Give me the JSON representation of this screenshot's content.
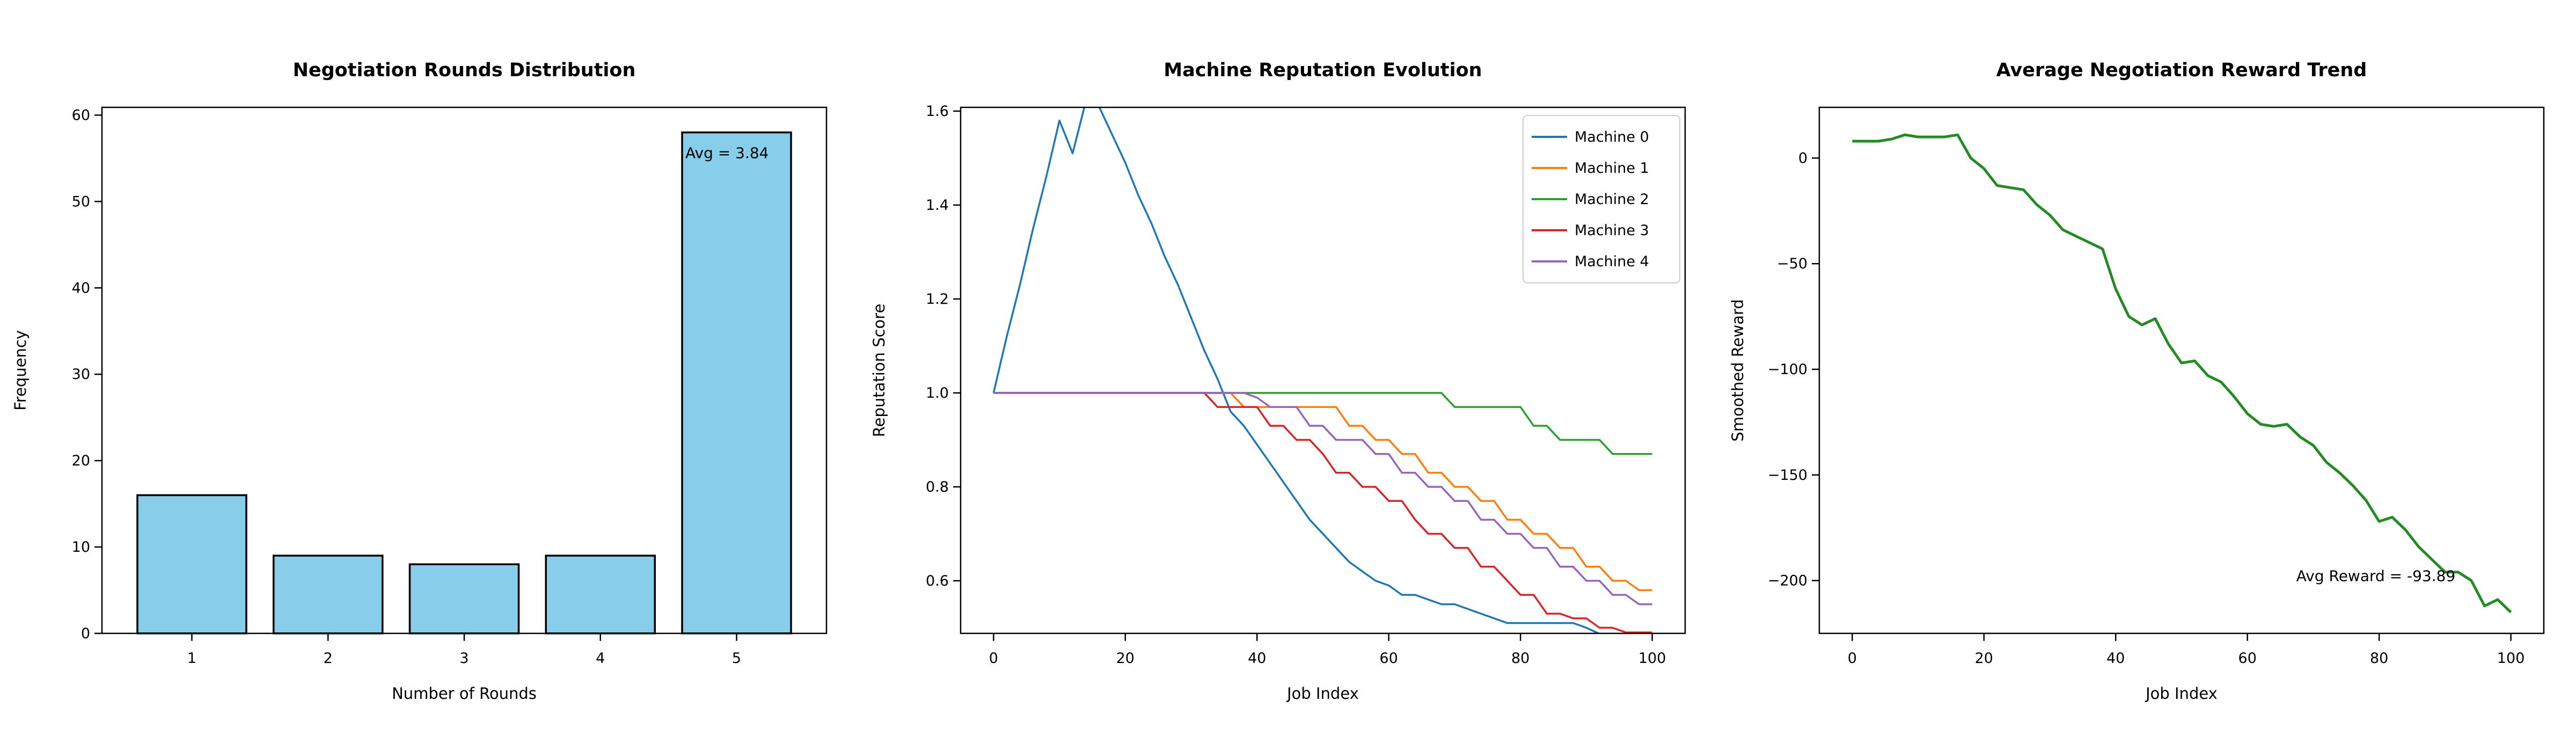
{
  "figure": {
    "background": "#ffffff"
  },
  "chart_data": [
    {
      "id": "rounds-distribution",
      "type": "bar",
      "title": "Negotiation Rounds Distribution",
      "xlabel": "Number of Rounds",
      "ylabel": "Frequency",
      "categories": [
        1,
        2,
        3,
        4,
        5
      ],
      "values": [
        16,
        9,
        8,
        9,
        58
      ],
      "bar_color": "#87CEEB",
      "bar_edge_color": "#000000",
      "bar_width": 0.8,
      "xlim": [
        0.34,
        5.66
      ],
      "ylim": [
        0,
        60.9
      ],
      "xticks": [
        1,
        2,
        3,
        4,
        5
      ],
      "xticklabels": [
        "1",
        "2",
        "3",
        "4",
        "5"
      ],
      "yticks": [
        0,
        10,
        20,
        30,
        40,
        50,
        60
      ],
      "yticklabels": [
        "0",
        "10",
        "20",
        "30",
        "40",
        "50",
        "60"
      ],
      "grid": false,
      "annotation": {
        "text": "Avg = 3.84",
        "x": 4.93,
        "y": 55.6
      }
    },
    {
      "id": "reputation-evolution",
      "type": "line",
      "title": "Machine Reputation Evolution",
      "xlabel": "Job Index",
      "ylabel": "Reputation Score",
      "x": [
        0,
        2,
        4,
        6,
        8,
        10,
        12,
        14,
        16,
        18,
        20,
        22,
        24,
        26,
        28,
        30,
        32,
        34,
        36,
        38,
        40,
        42,
        44,
        46,
        48,
        50,
        52,
        54,
        56,
        58,
        60,
        62,
        64,
        66,
        68,
        70,
        72,
        74,
        76,
        78,
        80,
        82,
        84,
        86,
        88,
        90,
        92,
        94,
        96,
        98,
        100
      ],
      "series": [
        {
          "name": "Machine 0",
          "color": "#1f77b4",
          "values": [
            1.0,
            1.12,
            1.23,
            1.35,
            1.46,
            1.58,
            1.51,
            1.62,
            1.61,
            1.55,
            1.49,
            1.42,
            1.36,
            1.29,
            1.23,
            1.16,
            1.09,
            1.03,
            0.96,
            0.93,
            0.89,
            0.85,
            0.81,
            0.77,
            0.73,
            0.7,
            0.67,
            0.64,
            0.62,
            0.6,
            0.59,
            0.57,
            0.57,
            0.56,
            0.55,
            0.55,
            0.54,
            0.53,
            0.52,
            0.51,
            0.51,
            0.51,
            0.51,
            0.51,
            0.51,
            0.5,
            0.487,
            0.487,
            0.487,
            0.487,
            0.487
          ]
        },
        {
          "name": "Machine 1",
          "color": "#ff7f0e",
          "values": [
            1.0,
            1.0,
            1.0,
            1.0,
            1.0,
            1.0,
            1.0,
            1.0,
            1.0,
            1.0,
            1.0,
            1.0,
            1.0,
            1.0,
            1.0,
            1.0,
            1.0,
            1.0,
            1.0,
            0.97,
            0.97,
            0.97,
            0.97,
            0.97,
            0.97,
            0.97,
            0.97,
            0.93,
            0.93,
            0.9,
            0.9,
            0.87,
            0.87,
            0.83,
            0.83,
            0.8,
            0.8,
            0.77,
            0.77,
            0.73,
            0.73,
            0.7,
            0.7,
            0.67,
            0.67,
            0.63,
            0.63,
            0.6,
            0.6,
            0.58,
            0.58
          ]
        },
        {
          "name": "Machine 2",
          "color": "#2ca02c",
          "values": [
            1.0,
            1.0,
            1.0,
            1.0,
            1.0,
            1.0,
            1.0,
            1.0,
            1.0,
            1.0,
            1.0,
            1.0,
            1.0,
            1.0,
            1.0,
            1.0,
            1.0,
            1.0,
            1.0,
            1.0,
            1.0,
            1.0,
            1.0,
            1.0,
            1.0,
            1.0,
            1.0,
            1.0,
            1.0,
            1.0,
            1.0,
            1.0,
            1.0,
            1.0,
            1.0,
            0.97,
            0.97,
            0.97,
            0.97,
            0.97,
            0.97,
            0.93,
            0.93,
            0.9,
            0.9,
            0.9,
            0.9,
            0.87,
            0.87,
            0.87,
            0.87
          ]
        },
        {
          "name": "Machine 3",
          "color": "#d62728",
          "values": [
            1.0,
            1.0,
            1.0,
            1.0,
            1.0,
            1.0,
            1.0,
            1.0,
            1.0,
            1.0,
            1.0,
            1.0,
            1.0,
            1.0,
            1.0,
            1.0,
            1.0,
            0.97,
            0.97,
            0.97,
            0.97,
            0.93,
            0.93,
            0.9,
            0.9,
            0.87,
            0.83,
            0.83,
            0.8,
            0.8,
            0.77,
            0.77,
            0.73,
            0.7,
            0.7,
            0.67,
            0.67,
            0.63,
            0.63,
            0.6,
            0.57,
            0.57,
            0.53,
            0.53,
            0.52,
            0.52,
            0.5,
            0.5,
            0.49,
            0.49,
            0.49
          ]
        },
        {
          "name": "Machine 4",
          "color": "#9467bd",
          "values": [
            1.0,
            1.0,
            1.0,
            1.0,
            1.0,
            1.0,
            1.0,
            1.0,
            1.0,
            1.0,
            1.0,
            1.0,
            1.0,
            1.0,
            1.0,
            1.0,
            1.0,
            1.0,
            1.0,
            1.0,
            0.99,
            0.97,
            0.97,
            0.97,
            0.93,
            0.93,
            0.9,
            0.9,
            0.9,
            0.87,
            0.87,
            0.83,
            0.83,
            0.8,
            0.8,
            0.77,
            0.77,
            0.73,
            0.73,
            0.7,
            0.7,
            0.67,
            0.67,
            0.63,
            0.63,
            0.6,
            0.6,
            0.57,
            0.57,
            0.55,
            0.55
          ]
        }
      ],
      "xlim": [
        -5,
        105
      ],
      "ylim": [
        0.488,
        1.608
      ],
      "xticks": [
        0,
        20,
        40,
        60,
        80,
        100
      ],
      "xticklabels": [
        "0",
        "20",
        "40",
        "60",
        "80",
        "100"
      ],
      "yticks": [
        0.6,
        0.8,
        1.0,
        1.2,
        1.4,
        1.6
      ],
      "yticklabels": [
        "0.6",
        "0.8",
        "1.0",
        "1.2",
        "1.4",
        "1.6"
      ],
      "grid": false,
      "line_width": 3.5,
      "legend": {
        "position": "upper right",
        "entries": [
          "Machine 0",
          "Machine 1",
          "Machine 2",
          "Machine 3",
          "Machine 4"
        ]
      }
    },
    {
      "id": "reward-trend",
      "type": "line",
      "title": "Average Negotiation Reward Trend",
      "xlabel": "Job Index",
      "ylabel": "Smoothed Reward",
      "x": [
        0,
        2,
        4,
        6,
        8,
        10,
        12,
        14,
        16,
        18,
        20,
        22,
        24,
        26,
        28,
        30,
        32,
        34,
        36,
        38,
        40,
        42,
        44,
        46,
        48,
        50,
        52,
        54,
        56,
        58,
        60,
        62,
        64,
        66,
        68,
        70,
        72,
        74,
        76,
        78,
        80,
        82,
        84,
        86,
        88,
        90,
        92,
        94,
        96,
        98,
        100
      ],
      "series": [
        {
          "name": "Smoothed Reward",
          "color": "#228B22",
          "values": [
            8,
            8,
            8,
            9,
            11,
            10,
            10,
            10,
            11,
            0,
            -5,
            -13,
            -14,
            -15,
            -22,
            -27,
            -34,
            -37,
            -40,
            -43,
            -62,
            -75,
            -79,
            -76,
            -88,
            -97,
            -96,
            -103,
            -106,
            -113,
            -121,
            -126,
            -127,
            -126,
            -132,
            -136,
            -144,
            -149,
            -155,
            -162,
            -172,
            -170,
            -176,
            -184,
            -190,
            -196,
            -196,
            -200,
            -212,
            -209,
            -215
          ]
        }
      ],
      "xlim": [
        -5,
        105
      ],
      "ylim": [
        -225,
        24
      ],
      "xticks": [
        0,
        20,
        40,
        60,
        80,
        100
      ],
      "xticklabels": [
        "0",
        "20",
        "40",
        "60",
        "80",
        "100"
      ],
      "yticks": [
        0,
        -50,
        -100,
        -150,
        -200
      ],
      "yticklabels": [
        "0",
        "−50",
        "−100",
        "−150",
        "−200"
      ],
      "grid": false,
      "line_width": 5,
      "annotation": {
        "text": "Avg Reward = -93.89",
        "x": 79.5,
        "y": -198
      }
    }
  ]
}
